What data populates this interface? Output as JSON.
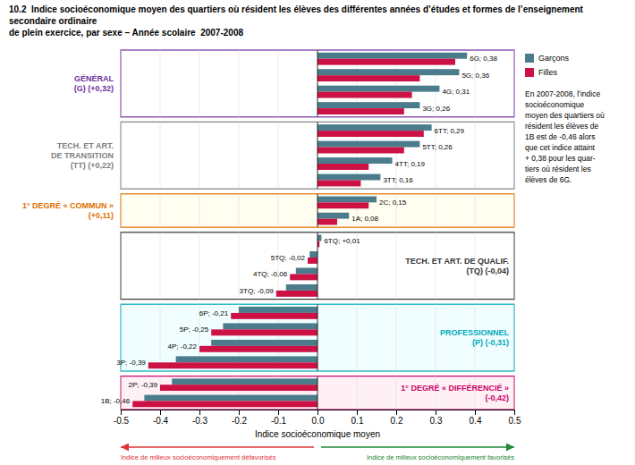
{
  "chart_data": {
    "type": "bar",
    "orientation": "horizontal",
    "title": "10.2  Indice socioéconomique moyen des quartiers où résident les élèves des différentes années d’études et formes de l’enseignement secondaire ordinaire",
    "subtitle": "de plein exercice, par sexe – Année scolaire  2007-2008",
    "x_label": "Indice socioéconomique moyen",
    "categories": [
      "6G; 0,38",
      "5G; 0,36",
      "4G; 0,31",
      "3G; 0,26",
      "6TT; 0,29",
      "5TT; 0,26",
      "4TT; 0,19",
      "3TT; 0,16",
      "2C; 0,15",
      "1A; 0,08",
      "6TQ; +0,01",
      "5TQ; -0,02",
      "4TQ; -0,06",
      "3TQ; -0,09",
      "6P; -0,21",
      "5P; -0,25",
      "4P; -0,22",
      "3P; -0,39",
      "2P; -0,39",
      "1B; -0,46"
    ],
    "series": [
      {
        "name": "Garçons",
        "color": "#4a7c8c",
        "values": [
          0.38,
          0.36,
          0.31,
          0.26,
          0.29,
          0.26,
          0.19,
          0.16,
          0.15,
          0.08,
          0.01,
          -0.02,
          -0.055,
          -0.08,
          -0.2,
          -0.24,
          -0.27,
          -0.36,
          -0.37,
          -0.44
        ]
      },
      {
        "name": "Filles",
        "color": "#cc1144",
        "values": [
          0.35,
          0.26,
          0.24,
          0.22,
          0.27,
          0.22,
          0.13,
          0.11,
          0.13,
          0.05,
          0.005,
          -0.025,
          -0.07,
          -0.105,
          -0.22,
          -0.27,
          -0.3,
          -0.43,
          -0.4,
          -0.47
        ]
      }
    ],
    "groups": [
      {
        "label": [
          "GÉNÉRAL",
          "(G) (+0,32)"
        ],
        "color": "#7030a0",
        "background": "#ffffff",
        "count": 4
      },
      {
        "label": [
          "TECH. ET ART.",
          "DE TRANSITION",
          "(TT) (+0,22)"
        ],
        "color": "#808080",
        "background": "#ffffff",
        "count": 4
      },
      {
        "label": [
          "1° DEGRÉ « COMMUN »",
          "(+0,11)"
        ],
        "color": "#e07000",
        "background": "#fffef0",
        "count": 2
      },
      {
        "label": [
          "TECH. ET ART. DE QUALIF.",
          "(TQ) (-0,04)"
        ],
        "color": "#333333",
        "background": "#ffffff",
        "count": 4
      },
      {
        "label": [
          "PROFESSIONNEL",
          "(P) (-0,31)"
        ],
        "color": "#00aabb",
        "background": "#f0feff",
        "count": 4
      },
      {
        "label": [
          "1° DEGRÉ « DIFFÉRENCIÉ »",
          "(-0,42)"
        ],
        "color": "#cc0066",
        "background": "#fff0f5",
        "count": 2
      }
    ],
    "xlim": [
      -0.5,
      0.5
    ],
    "xticks": [
      -0.5,
      -0.4,
      -0.3,
      -0.2,
      -0.1,
      {
        "value": 0,
        "label": "0.0"
      },
      0.1,
      0.2,
      0.3,
      0.4,
      0.5
    ],
    "grid": true,
    "legend": "right",
    "annotation": "En 2007-2008, l’indice\nsocioéconomique\nmoyen des quartiers où\nrésident les élèves de\n1B est de -0,46 alors\nque cet indice attaint\n+ 0,38 pour les quar-\ntiers où résident les\nélèves de 6G.",
    "arrows": [
      {
        "label": "Indice de milieux socioéconomiquement défavorisés",
        "color": "#dd3333",
        "direction": "left"
      },
      {
        "label": "Indice de milieux socioéconomiquement favorisés",
        "color": "#228833",
        "direction": "right"
      }
    ]
  }
}
